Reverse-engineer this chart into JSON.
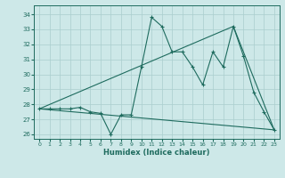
{
  "xlabel": "Humidex (Indice chaleur)",
  "xlim": [
    -0.5,
    23.5
  ],
  "ylim": [
    25.7,
    34.6
  ],
  "yticks": [
    26,
    27,
    28,
    29,
    30,
    31,
    32,
    33,
    34
  ],
  "xticks": [
    0,
    1,
    2,
    3,
    4,
    5,
    6,
    7,
    8,
    9,
    10,
    11,
    12,
    13,
    14,
    15,
    16,
    17,
    18,
    19,
    20,
    21,
    22,
    23
  ],
  "bg_color": "#cde8e8",
  "grid_color": "#aacece",
  "line_color": "#1e6b5e",
  "line1_x": [
    0,
    1,
    2,
    3,
    4,
    5,
    6,
    7,
    8,
    9,
    10,
    11,
    12,
    13,
    14,
    15,
    16,
    17,
    18,
    19,
    20,
    21,
    22,
    23
  ],
  "line1_y": [
    27.7,
    27.7,
    27.7,
    27.7,
    27.8,
    27.5,
    27.4,
    26.0,
    27.3,
    27.3,
    30.5,
    33.8,
    33.2,
    31.5,
    31.5,
    30.5,
    29.3,
    31.5,
    30.5,
    33.2,
    31.2,
    28.8,
    27.5,
    26.3
  ],
  "line2_x": [
    0,
    19,
    23
  ],
  "line2_y": [
    27.7,
    33.2,
    26.3
  ],
  "line3_x": [
    0,
    23
  ],
  "line3_y": [
    27.7,
    26.3
  ]
}
